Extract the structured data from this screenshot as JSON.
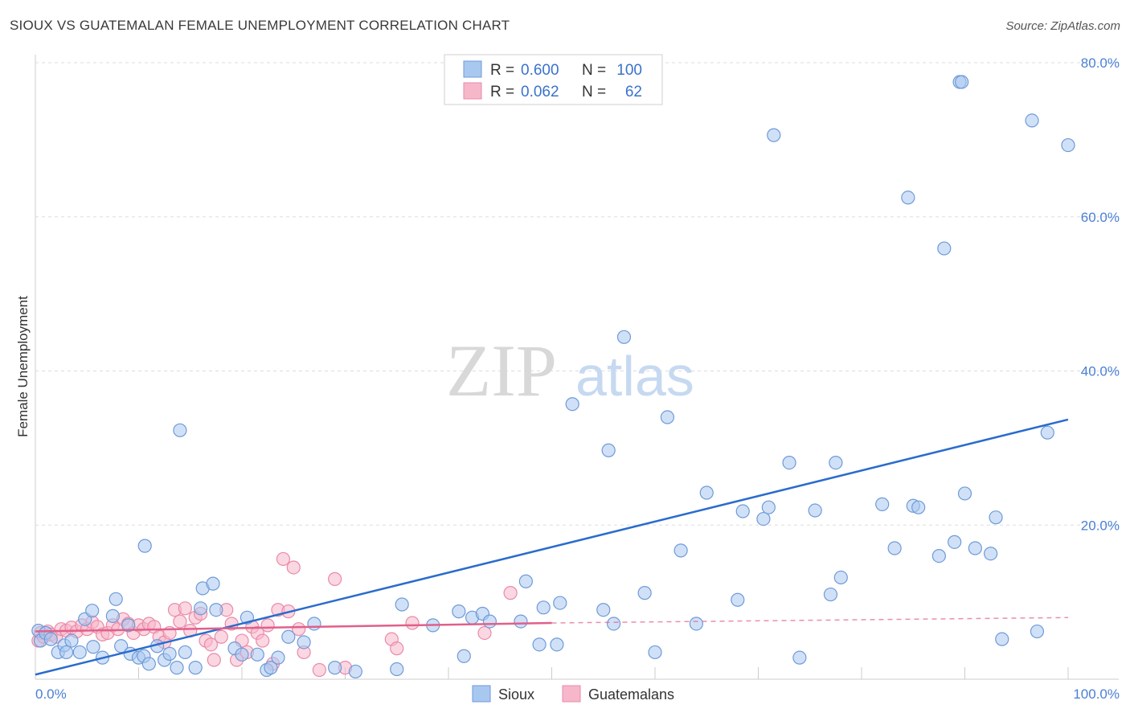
{
  "title": "SIOUX VS GUATEMALAN FEMALE UNEMPLOYMENT CORRELATION CHART",
  "source": "Source: ZipAtlas.com",
  "watermark": {
    "zip": "ZIP",
    "atlas": "atlas"
  },
  "colors": {
    "sioux_fill": "#a9c8f0",
    "sioux_stroke": "#6f9ad8",
    "sioux_line": "#2a6ccc",
    "guat_fill": "#f7b7ca",
    "guat_stroke": "#ea8aa8",
    "guat_line": "#e0608a",
    "grid": "#dddddd",
    "tick_text": "#4a7fd4"
  },
  "legend": {
    "rows": [
      {
        "r_label": "R =",
        "r_value": "0.600",
        "n_label": "N =",
        "n_value": "100"
      },
      {
        "r_label": "R =",
        "r_value": "0.062",
        "n_label": "N =",
        "n_value": "62"
      }
    ]
  },
  "chart_data": {
    "type": "scatter",
    "title": "SIOUX VS GUATEMALAN FEMALE UNEMPLOYMENT CORRELATION CHART",
    "xlabel": "",
    "ylabel": "Female Unemployment",
    "xlim": [
      0,
      100
    ],
    "ylim": [
      0,
      80
    ],
    "x_tick_labels": [
      "0.0%",
      "100.0%"
    ],
    "y_ticks": [
      20,
      40,
      60,
      80
    ],
    "y_tick_labels": [
      "20.0%",
      "40.0%",
      "60.0%",
      "80.0%"
    ],
    "grid": true,
    "legend_position": "bottom",
    "series": [
      {
        "name": "Sioux",
        "R": 0.6,
        "N": 100,
        "trend": {
          "x": [
            0,
            100
          ],
          "y": [
            0.6,
            33.7
          ],
          "style": "solid"
        },
        "points": [
          [
            0.3,
            6.3
          ],
          [
            0.5,
            5.0
          ],
          [
            1.0,
            6.0
          ],
          [
            1.5,
            5.2
          ],
          [
            2.2,
            3.5
          ],
          [
            2.8,
            4.4
          ],
          [
            3.0,
            3.5
          ],
          [
            3.5,
            5.0
          ],
          [
            4.3,
            3.5
          ],
          [
            4.8,
            7.8
          ],
          [
            5.6,
            4.2
          ],
          [
            5.5,
            8.9
          ],
          [
            6.5,
            2.8
          ],
          [
            7.5,
            8.2
          ],
          [
            7.8,
            10.4
          ],
          [
            8.3,
            4.3
          ],
          [
            9.2,
            3.3
          ],
          [
            9.0,
            7.0
          ],
          [
            10.0,
            2.8
          ],
          [
            10.6,
            17.3
          ],
          [
            10.5,
            3.0
          ],
          [
            11.0,
            2.0
          ],
          [
            11.8,
            4.3
          ],
          [
            12.5,
            2.5
          ],
          [
            13.0,
            3.3
          ],
          [
            13.7,
            1.5
          ],
          [
            14.0,
            32.3
          ],
          [
            14.5,
            3.5
          ],
          [
            15.5,
            1.5
          ],
          [
            16.0,
            9.2
          ],
          [
            16.2,
            11.8
          ],
          [
            17.2,
            12.4
          ],
          [
            17.5,
            9.0
          ],
          [
            19.3,
            4.0
          ],
          [
            20.0,
            3.2
          ],
          [
            20.5,
            8.0
          ],
          [
            21.5,
            3.2
          ],
          [
            22.4,
            1.2
          ],
          [
            22.8,
            1.5
          ],
          [
            23.5,
            2.8
          ],
          [
            24.5,
            5.5
          ],
          [
            26.0,
            4.8
          ],
          [
            27.0,
            7.2
          ],
          [
            29.0,
            1.5
          ],
          [
            31.0,
            1.0
          ],
          [
            35.0,
            1.3
          ],
          [
            35.5,
            9.7
          ],
          [
            38.5,
            7.0
          ],
          [
            41.5,
            3.0
          ],
          [
            41.0,
            8.8
          ],
          [
            42.3,
            8.0
          ],
          [
            43.3,
            8.5
          ],
          [
            44.0,
            7.5
          ],
          [
            47.0,
            7.5
          ],
          [
            47.5,
            12.7
          ],
          [
            48.8,
            4.5
          ],
          [
            49.2,
            9.3
          ],
          [
            50.5,
            4.5
          ],
          [
            50.8,
            9.9
          ],
          [
            52.0,
            35.7
          ],
          [
            55.0,
            9.0
          ],
          [
            55.5,
            29.7
          ],
          [
            56.0,
            7.2
          ],
          [
            57.0,
            44.4
          ],
          [
            59.0,
            11.2
          ],
          [
            60.0,
            3.5
          ],
          [
            61.2,
            34.0
          ],
          [
            62.5,
            16.7
          ],
          [
            64.0,
            7.2
          ],
          [
            65.0,
            24.2
          ],
          [
            68.0,
            10.3
          ],
          [
            68.5,
            21.8
          ],
          [
            70.5,
            20.8
          ],
          [
            71.0,
            22.3
          ],
          [
            71.5,
            70.6
          ],
          [
            73.0,
            28.1
          ],
          [
            74.0,
            2.8
          ],
          [
            75.5,
            21.9
          ],
          [
            77.0,
            11.0
          ],
          [
            77.5,
            28.1
          ],
          [
            78.0,
            13.2
          ],
          [
            82.0,
            22.7
          ],
          [
            83.2,
            17.0
          ],
          [
            84.5,
            62.5
          ],
          [
            85.0,
            22.5
          ],
          [
            85.5,
            22.3
          ],
          [
            87.5,
            16.0
          ],
          [
            88.0,
            55.9
          ],
          [
            89.0,
            17.8
          ],
          [
            89.5,
            77.5
          ],
          [
            89.7,
            77.5
          ],
          [
            90.0,
            24.1
          ],
          [
            91.0,
            17.0
          ],
          [
            92.5,
            16.3
          ],
          [
            93.0,
            21.0
          ],
          [
            93.6,
            5.2
          ],
          [
            96.5,
            72.5
          ],
          [
            97.0,
            6.2
          ],
          [
            98.0,
            32.0
          ],
          [
            100.0,
            69.3
          ]
        ]
      },
      {
        "name": "Guatemalans",
        "R": 0.062,
        "N": 62,
        "trend": {
          "x": [
            0,
            50
          ],
          "y": [
            6.2,
            7.3
          ],
          "style": "solid",
          "extended_to": [
            100,
            8.0
          ]
        },
        "points": [
          [
            0.3,
            5.0
          ],
          [
            0.5,
            6.0
          ],
          [
            0.8,
            5.5
          ],
          [
            1.2,
            6.2
          ],
          [
            1.5,
            5.8
          ],
          [
            2.0,
            5.5
          ],
          [
            2.5,
            6.5
          ],
          [
            3.0,
            6.3
          ],
          [
            3.5,
            6.7
          ],
          [
            4.0,
            6.2
          ],
          [
            4.5,
            7.0
          ],
          [
            5.0,
            6.5
          ],
          [
            5.5,
            7.4
          ],
          [
            6.0,
            6.8
          ],
          [
            6.5,
            5.8
          ],
          [
            7.0,
            6.0
          ],
          [
            7.5,
            7.0
          ],
          [
            8.0,
            6.5
          ],
          [
            8.5,
            7.8
          ],
          [
            9.0,
            7.2
          ],
          [
            9.5,
            6.0
          ],
          [
            10.0,
            7.0
          ],
          [
            10.5,
            6.5
          ],
          [
            11.0,
            7.2
          ],
          [
            11.5,
            6.8
          ],
          [
            12.0,
            5.5
          ],
          [
            12.5,
            4.8
          ],
          [
            13.0,
            6.0
          ],
          [
            13.5,
            9.0
          ],
          [
            14.0,
            7.5
          ],
          [
            14.5,
            9.2
          ],
          [
            15.0,
            6.3
          ],
          [
            15.5,
            8.0
          ],
          [
            16.0,
            8.5
          ],
          [
            16.5,
            5.0
          ],
          [
            17.0,
            4.5
          ],
          [
            17.3,
            2.5
          ],
          [
            18.0,
            5.5
          ],
          [
            18.5,
            9.0
          ],
          [
            19.0,
            7.2
          ],
          [
            19.5,
            2.5
          ],
          [
            20.0,
            5.0
          ],
          [
            20.5,
            3.5
          ],
          [
            21.0,
            6.8
          ],
          [
            21.5,
            6.0
          ],
          [
            22.0,
            5.0
          ],
          [
            22.5,
            7.0
          ],
          [
            23.0,
            2.0
          ],
          [
            23.5,
            9.0
          ],
          [
            24.0,
            15.6
          ],
          [
            24.5,
            8.8
          ],
          [
            25.0,
            14.5
          ],
          [
            25.5,
            6.5
          ],
          [
            26.0,
            3.5
          ],
          [
            27.5,
            1.2
          ],
          [
            29.0,
            13.0
          ],
          [
            30.0,
            1.5
          ],
          [
            34.5,
            5.2
          ],
          [
            35.0,
            4.0
          ],
          [
            36.5,
            7.3
          ],
          [
            43.5,
            6.0
          ],
          [
            46.0,
            11.2
          ]
        ]
      }
    ]
  }
}
